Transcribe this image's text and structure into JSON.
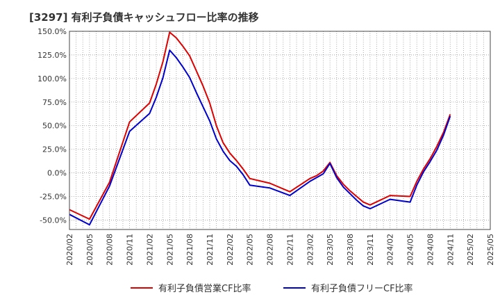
{
  "title": "[3297]  有利子負債キャッシュフロー比率の推移",
  "colors": {
    "series1": "#dd0000",
    "series2": "#0000cc",
    "grid": "#999999",
    "axis": "#444444"
  },
  "chart_data": {
    "type": "line",
    "title": "[3297]  有利子負債キャッシュフロー比率の推移",
    "xlabel": "",
    "ylabel": "",
    "ylim": [
      -60,
      150
    ],
    "yticks": [
      "150.0%",
      "125.0%",
      "100.0%",
      "75.0%",
      "50.0%",
      "25.0%",
      "0.0%",
      "-25.0%",
      "-50.0%"
    ],
    "ytick_values": [
      150,
      125,
      100,
      75,
      50,
      25,
      0,
      -25,
      -50
    ],
    "x_ticks": [
      "2020/02",
      "2020/05",
      "2020/08",
      "2020/11",
      "2021/02",
      "2021/05",
      "2021/08",
      "2021/11",
      "2022/02",
      "2022/05",
      "2022/08",
      "2022/11",
      "2023/02",
      "2023/05",
      "2023/08",
      "2023/11",
      "2024/02",
      "2024/05",
      "2024/08",
      "2024/11",
      "2025/02",
      "2025/05"
    ],
    "grid": true,
    "legend_position": "bottom",
    "x": [
      "2020/02",
      "2020/05",
      "2020/08",
      "2020/11",
      "2021/02",
      "2021/03",
      "2021/04",
      "2021/05",
      "2021/06",
      "2021/07",
      "2021/08",
      "2021/09",
      "2021/10",
      "2021/11",
      "2021/12",
      "2022/01",
      "2022/02",
      "2022/03",
      "2022/04",
      "2022/05",
      "2022/08",
      "2022/11",
      "2023/02",
      "2023/03",
      "2023/04",
      "2023/05",
      "2023/06",
      "2023/07",
      "2023/08",
      "2023/09",
      "2023/10",
      "2023/11",
      "2024/02",
      "2024/05",
      "2024/06",
      "2024/07",
      "2024/08",
      "2024/09",
      "2024/10",
      "2024/11"
    ],
    "series": [
      {
        "name": "有利子負債営業CF比率",
        "values": [
          -39,
          -49,
          -10,
          54,
          74,
          94,
          118,
          149,
          143,
          134,
          124,
          108,
          92,
          74,
          50,
          32,
          21,
          13,
          4,
          -6,
          -11,
          -20,
          -6,
          -3,
          2,
          11,
          -3,
          -12,
          -19,
          -25,
          -31,
          -34,
          -24,
          -25,
          -9,
          4,
          15,
          28,
          43,
          62
        ]
      },
      {
        "name": "有利子負債フリーCF比率",
        "values": [
          -44,
          -55,
          -14,
          44,
          63,
          80,
          101,
          130,
          122,
          112,
          101,
          85,
          70,
          55,
          36,
          23,
          13,
          7,
          -2,
          -13,
          -16,
          -24,
          -9,
          -5,
          -1,
          10,
          -5,
          -15,
          -22,
          -29,
          -35,
          -38,
          -28,
          -31,
          -13,
          1,
          12,
          24,
          40,
          60
        ]
      }
    ]
  },
  "legend": [
    {
      "label": "有利子負債営業CF比率"
    },
    {
      "label": "有利子負債フリーCF比率"
    }
  ]
}
